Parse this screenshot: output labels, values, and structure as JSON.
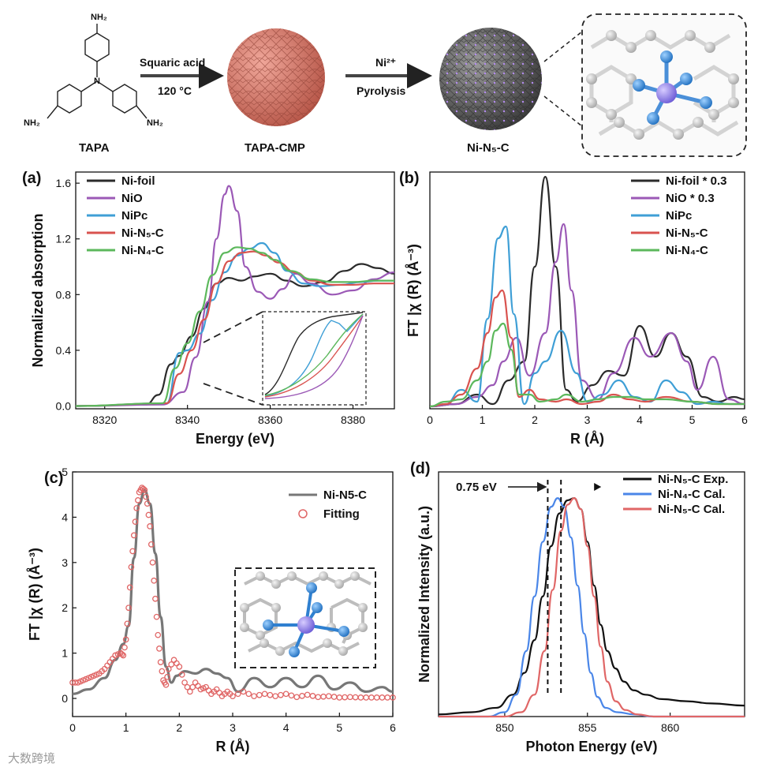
{
  "scheme": {
    "tapa_label": "TAPA",
    "nh2": "NH₂",
    "n_atom": "N",
    "step1_line1": "Squaric acid",
    "step1_line2": "120 °C",
    "cmp_label": "TAPA-CMP",
    "step2_line1": "Ni²⁺",
    "step2_line2": "Pyrolysis",
    "product_label": "Ni-N₅-C",
    "colors": {
      "cmp": "#c96a5a",
      "product": "#5a5a5a",
      "ni": "#8e7fe0",
      "n": "#3a8fd8",
      "c": "#c8c8c8"
    }
  },
  "watermark": "大数跨境",
  "chart_data": [
    {
      "panel": "(a)",
      "type": "line",
      "title": "",
      "xlabel": "Energy (eV)",
      "ylabel": "Normalized absorption",
      "xlim": [
        8313,
        8390
      ],
      "ylim": [
        -0.02,
        1.68
      ],
      "xticks": [
        8320,
        8340,
        8360,
        8380
      ],
      "yticks": [
        0.0,
        0.4,
        0.8,
        1.2,
        1.6
      ],
      "ytick_labels": [
        "0.0",
        "0.4",
        "0.8",
        "1.2",
        "1.6"
      ],
      "legend_position": "top-left",
      "series": [
        {
          "name": "Ni-foil",
          "color": "#2b2b2b",
          "x": [
            8313,
            8330,
            8333,
            8336,
            8338,
            8341,
            8344,
            8347,
            8350,
            8353,
            8356,
            8360,
            8364,
            8368,
            8373,
            8378,
            8382,
            8386,
            8390
          ],
          "y": [
            0,
            0.01,
            0.08,
            0.3,
            0.36,
            0.5,
            0.7,
            0.88,
            0.92,
            0.9,
            0.93,
            0.95,
            0.9,
            0.86,
            0.89,
            0.97,
            1.02,
            0.99,
            0.95
          ]
        },
        {
          "name": "NiO",
          "color": "#9b59b6",
          "x": [
            8313,
            8334,
            8339,
            8342,
            8345,
            8347,
            8349,
            8350,
            8352,
            8354,
            8357,
            8360,
            8363,
            8366,
            8370,
            8375,
            8380,
            8385,
            8390
          ],
          "y": [
            0,
            0.01,
            0.1,
            0.35,
            0.75,
            1.2,
            1.52,
            1.58,
            1.4,
            1.0,
            0.82,
            0.77,
            0.84,
            0.95,
            0.88,
            0.8,
            0.83,
            0.91,
            0.96
          ]
        },
        {
          "name": "NiPc",
          "color": "#3f9fd6",
          "x": [
            8313,
            8335,
            8338,
            8340,
            8343,
            8346,
            8349,
            8352,
            8355,
            8358,
            8361,
            8364,
            8368,
            8372,
            8377,
            8382,
            8386,
            8390
          ],
          "y": [
            0,
            0.02,
            0.38,
            0.4,
            0.52,
            0.76,
            0.96,
            1.08,
            1.13,
            1.17,
            1.1,
            0.97,
            0.88,
            0.86,
            0.87,
            0.89,
            0.9,
            0.9
          ]
        },
        {
          "name": "Ni-N₅-C",
          "color": "#d9534f",
          "x": [
            8313,
            8335,
            8338,
            8341,
            8344,
            8347,
            8350,
            8353,
            8356,
            8359,
            8362,
            8366,
            8370,
            8375,
            8380,
            8385,
            8390
          ],
          "y": [
            0,
            0.02,
            0.23,
            0.4,
            0.62,
            0.88,
            1.04,
            1.1,
            1.11,
            1.08,
            1.03,
            0.96,
            0.9,
            0.87,
            0.87,
            0.88,
            0.88
          ]
        },
        {
          "name": "Ni-N₄-C",
          "color": "#5cb85c",
          "x": [
            8313,
            8334,
            8337,
            8340,
            8343,
            8346,
            8349,
            8352,
            8355,
            8358,
            8361,
            8365,
            8370,
            8375,
            8380,
            8385,
            8390
          ],
          "y": [
            0,
            0.02,
            0.27,
            0.45,
            0.68,
            0.94,
            1.1,
            1.14,
            1.13,
            1.1,
            1.05,
            0.97,
            0.91,
            0.89,
            0.89,
            0.9,
            0.9
          ]
        }
      ]
    },
    {
      "panel": "(b)",
      "type": "line",
      "title": "",
      "xlabel": "R (Å)",
      "ylabel": "FT |χ (R) (Å⁻³)",
      "xlim": [
        0,
        6
      ],
      "ylim": [
        0,
        1.0
      ],
      "xticks": [
        0,
        1,
        2,
        3,
        4,
        5,
        6
      ],
      "yticks": [],
      "legend_position": "top-right",
      "series": [
        {
          "name": "Ni-foil * 0.3",
          "color": "#2b2b2b",
          "x": [
            0,
            0.5,
            0.9,
            1.2,
            1.5,
            1.8,
            2.0,
            2.2,
            2.4,
            2.6,
            2.8,
            3.1,
            3.4,
            3.7,
            4.0,
            4.3,
            4.6,
            4.9,
            5.2,
            5.5,
            5.8,
            6.0
          ],
          "y": [
            0.01,
            0.02,
            0.06,
            0.02,
            0.12,
            0.2,
            0.6,
            0.98,
            0.6,
            0.08,
            0.03,
            0.1,
            0.16,
            0.14,
            0.35,
            0.22,
            0.32,
            0.22,
            0.05,
            0.03,
            0.05,
            0.04
          ]
        },
        {
          "name": "NiO * 0.3",
          "color": "#9b59b6",
          "x": [
            0,
            0.5,
            0.9,
            1.2,
            1.4,
            1.65,
            1.9,
            2.2,
            2.4,
            2.55,
            2.7,
            2.9,
            3.2,
            3.5,
            3.9,
            4.2,
            4.6,
            4.9,
            5.1,
            5.4,
            5.7,
            6.0
          ],
          "y": [
            0.01,
            0.02,
            0.05,
            0.1,
            0.2,
            0.3,
            0.14,
            0.32,
            0.62,
            0.78,
            0.5,
            0.12,
            0.04,
            0.15,
            0.3,
            0.22,
            0.32,
            0.2,
            0.08,
            0.22,
            0.04,
            0.02
          ]
        },
        {
          "name": "NiPc",
          "color": "#3f9fd6",
          "x": [
            0,
            0.3,
            0.6,
            0.9,
            1.1,
            1.3,
            1.45,
            1.6,
            1.8,
            2.0,
            2.2,
            2.5,
            2.8,
            3.0,
            3.3,
            3.6,
            3.9,
            4.2,
            4.5,
            4.8,
            5.1,
            5.4,
            5.7,
            6.0
          ],
          "y": [
            0.01,
            0.02,
            0.08,
            0.03,
            0.38,
            0.72,
            0.77,
            0.4,
            0.02,
            0.15,
            0.2,
            0.33,
            0.15,
            0.03,
            0.06,
            0.12,
            0.05,
            0.03,
            0.12,
            0.07,
            0.02,
            0.03,
            0.02,
            0.02
          ]
        },
        {
          "name": "Ni-N₅-C",
          "color": "#d9534f",
          "x": [
            0,
            0.3,
            0.6,
            0.9,
            1.1,
            1.25,
            1.38,
            1.55,
            1.7,
            1.9,
            2.1,
            2.4,
            2.6,
            2.9,
            3.2,
            3.5,
            3.8,
            4.1,
            4.5,
            5.0,
            5.5,
            6.0
          ],
          "y": [
            0.01,
            0.02,
            0.06,
            0.17,
            0.32,
            0.47,
            0.5,
            0.3,
            0.05,
            0.08,
            0.04,
            0.03,
            0.04,
            0.02,
            0.03,
            0.06,
            0.04,
            0.03,
            0.05,
            0.03,
            0.02,
            0.02
          ]
        },
        {
          "name": "Ni-N₄-C",
          "color": "#5cb85c",
          "x": [
            0,
            0.3,
            0.6,
            0.9,
            1.1,
            1.25,
            1.4,
            1.55,
            1.7,
            1.9,
            2.1,
            2.4,
            2.6,
            2.9,
            3.2,
            3.5,
            3.8,
            4.1,
            4.5,
            5.0,
            5.5,
            6.0
          ],
          "y": [
            0.01,
            0.03,
            0.04,
            0.12,
            0.2,
            0.33,
            0.36,
            0.25,
            0.06,
            0.06,
            0.03,
            0.04,
            0.06,
            0.03,
            0.04,
            0.05,
            0.05,
            0.04,
            0.04,
            0.03,
            0.02,
            0.02
          ]
        }
      ]
    },
    {
      "panel": "(c)",
      "type": "line",
      "title": "",
      "xlabel": "R (Å)",
      "ylabel": "FT |χ (R) (Å⁻³)",
      "xlim": [
        0,
        6
      ],
      "ylim": [
        -0.4,
        5
      ],
      "xticks": [
        0,
        1,
        2,
        3,
        4,
        5,
        6
      ],
      "yticks": [
        0,
        1,
        2,
        3,
        4,
        5
      ],
      "legend_position": "top-right",
      "series": [
        {
          "name": "Ni-N5-C",
          "color": "#777777",
          "style": "line",
          "x": [
            0,
            0.3,
            0.6,
            0.8,
            0.95,
            1.05,
            1.15,
            1.25,
            1.35,
            1.45,
            1.55,
            1.65,
            1.75,
            1.85,
            1.95,
            2.1,
            2.3,
            2.5,
            2.7,
            2.9,
            3.1,
            3.4,
            3.7,
            4.0,
            4.3,
            4.6,
            4.9,
            5.2,
            5.5,
            5.8,
            6.0
          ],
          "y": [
            0.1,
            0.2,
            0.45,
            0.85,
            1.2,
            1.6,
            3.1,
            4.3,
            4.6,
            4.3,
            3.2,
            1.8,
            0.7,
            0.35,
            0.5,
            0.6,
            0.55,
            0.65,
            0.55,
            0.45,
            0.15,
            0.45,
            0.25,
            0.45,
            0.25,
            0.5,
            0.2,
            0.35,
            0.15,
            0.25,
            0.15
          ]
        },
        {
          "name": "Fitting",
          "color": "#e06666",
          "style": "markers",
          "x": [
            0,
            0.1,
            0.2,
            0.3,
            0.4,
            0.5,
            0.6,
            0.7,
            0.8,
            0.9,
            0.95,
            1.0,
            1.05,
            1.1,
            1.15,
            1.2,
            1.25,
            1.3,
            1.35,
            1.4,
            1.45,
            1.5,
            1.55,
            1.6,
            1.65,
            1.7,
            1.75,
            1.8,
            1.9,
            2.0,
            2.1,
            2.2,
            2.3,
            2.4,
            2.5,
            2.6,
            2.7,
            2.8,
            2.9,
            3.0,
            3.2,
            3.4,
            3.6,
            3.8,
            4.0,
            4.2,
            4.4,
            4.6,
            4.8,
            5.0,
            5.2,
            5.4,
            5.6,
            5.8,
            6.0
          ],
          "y": [
            0.35,
            0.35,
            0.4,
            0.45,
            0.5,
            0.55,
            0.65,
            0.8,
            0.95,
            1.0,
            0.95,
            1.3,
            2.0,
            2.9,
            3.6,
            4.2,
            4.55,
            4.65,
            4.6,
            4.3,
            3.8,
            3.0,
            2.2,
            1.4,
            0.8,
            0.4,
            0.3,
            0.65,
            0.85,
            0.7,
            0.35,
            0.15,
            0.35,
            0.2,
            0.25,
            0.1,
            0.2,
            0.05,
            0.15,
            0.05,
            0.15,
            0.05,
            0.1,
            0.05,
            0.1,
            0.03,
            0.08,
            0.03,
            0.05,
            0.02,
            0.03,
            0.02,
            0.02,
            0.02,
            0.02
          ]
        }
      ]
    },
    {
      "panel": "(d)",
      "type": "line",
      "title": "",
      "xlabel": "Photon Energy (eV)",
      "ylabel": "Normalized Intensity (a.u.)",
      "xlim": [
        846,
        864.5
      ],
      "ylim": [
        0,
        1.12
      ],
      "xticks": [
        850,
        855,
        860
      ],
      "yticks": [],
      "legend_position": "top-right",
      "annotation": "0.75 eV",
      "dashed_lines_x": [
        852.6,
        853.4
      ],
      "series": [
        {
          "name": "Ni-N₅-C Exp.",
          "color": "#111111",
          "x": [
            846,
            848,
            849.5,
            850.5,
            851.2,
            851.8,
            852.3,
            852.8,
            853.3,
            853.8,
            854.2,
            854.6,
            855.0,
            855.4,
            855.8,
            856.2,
            856.7,
            857.2,
            857.8,
            858.5,
            859.5,
            861,
            862.5,
            864.5
          ],
          "y": [
            0.01,
            0.02,
            0.04,
            0.1,
            0.2,
            0.35,
            0.55,
            0.78,
            0.93,
            0.99,
            1.0,
            0.95,
            0.8,
            0.6,
            0.42,
            0.3,
            0.22,
            0.16,
            0.12,
            0.1,
            0.08,
            0.07,
            0.06,
            0.05
          ]
        },
        {
          "name": "Ni-N₄-C Cal.",
          "color": "#4a86e8",
          "x": [
            846,
            849,
            850,
            850.7,
            851.3,
            851.8,
            852.3,
            852.8,
            853.2,
            853.6,
            854.0,
            854.4,
            854.8,
            855.2,
            855.6,
            856.1,
            856.8,
            857.8,
            859,
            864.5
          ],
          "y": [
            0,
            0.0,
            0.02,
            0.1,
            0.3,
            0.55,
            0.8,
            0.96,
            1.0,
            0.96,
            0.82,
            0.6,
            0.38,
            0.2,
            0.09,
            0.04,
            0.02,
            0.01,
            0.0,
            0
          ]
        },
        {
          "name": "Ni-N₅-C Cal.",
          "color": "#e06666",
          "x": [
            846,
            850,
            851,
            851.8,
            852.4,
            852.9,
            853.4,
            853.8,
            854.2,
            854.6,
            855.0,
            855.4,
            855.8,
            856.2,
            856.7,
            857.3,
            858,
            859,
            864.5
          ],
          "y": [
            0,
            0.0,
            0.02,
            0.1,
            0.3,
            0.58,
            0.85,
            0.97,
            1.0,
            0.95,
            0.78,
            0.55,
            0.32,
            0.16,
            0.07,
            0.03,
            0.01,
            0.0,
            0
          ]
        }
      ]
    }
  ]
}
